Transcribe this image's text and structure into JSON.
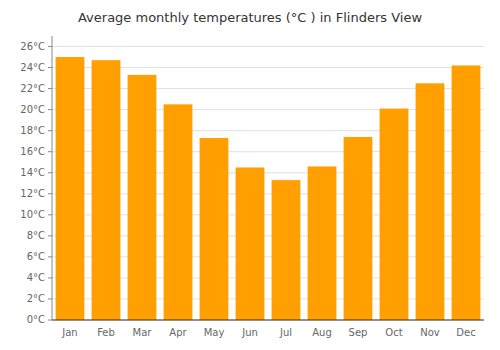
{
  "chart_data": {
    "type": "bar",
    "title": "Average monthly temperatures (°C ) in Flinders View",
    "categories": [
      "Jan",
      "Feb",
      "Mar",
      "Apr",
      "May",
      "Jun",
      "Jul",
      "Aug",
      "Sep",
      "Oct",
      "Nov",
      "Dec"
    ],
    "values": [
      25.0,
      24.7,
      23.3,
      20.5,
      17.3,
      14.5,
      13.3,
      14.6,
      17.4,
      20.1,
      22.5,
      24.2
    ],
    "color": "#FFA000",
    "ylim": [
      0,
      27
    ],
    "yticks": [
      {
        "value": 0,
        "label": "0°C"
      },
      {
        "value": 2,
        "label": "2°C"
      },
      {
        "value": 4,
        "label": "4°C"
      },
      {
        "value": 6,
        "label": "6°C"
      },
      {
        "value": 8,
        "label": "8°C"
      },
      {
        "value": 10,
        "label": "10°C"
      },
      {
        "value": 12,
        "label": "12°C"
      },
      {
        "value": 14,
        "label": "14°C"
      },
      {
        "value": 16,
        "label": "16°C"
      },
      {
        "value": 18,
        "label": "18°C"
      },
      {
        "value": 20,
        "label": "20°C"
      },
      {
        "value": 22,
        "label": "22°C"
      },
      {
        "value": 24,
        "label": "24°C"
      },
      {
        "value": 26,
        "label": "26°C"
      }
    ],
    "grid": true
  }
}
